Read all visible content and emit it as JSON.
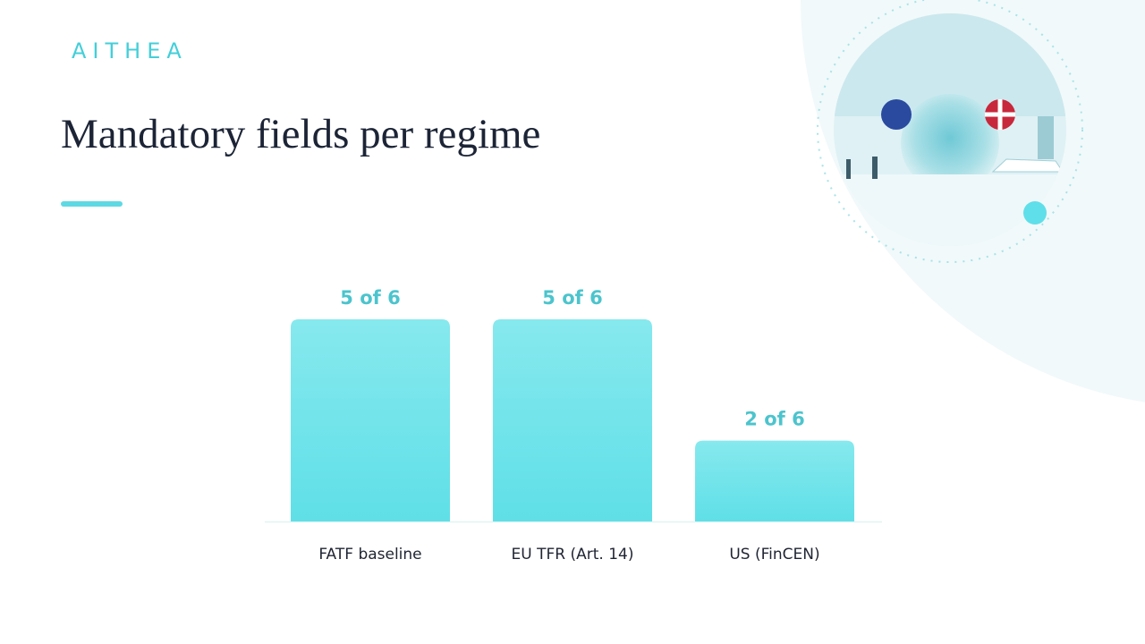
{
  "brand": "AITHEA",
  "chart_data": {
    "type": "bar",
    "title": "Mandatory fields per regime",
    "categories": [
      "FATF baseline",
      "EU TFR (Art. 14)",
      "US (FinCEN)"
    ],
    "values": [
      5,
      5,
      2
    ],
    "value_labels": [
      "5 of 6",
      "5 of 6",
      "2 of 6"
    ],
    "color": "#6ee3ea"
  }
}
